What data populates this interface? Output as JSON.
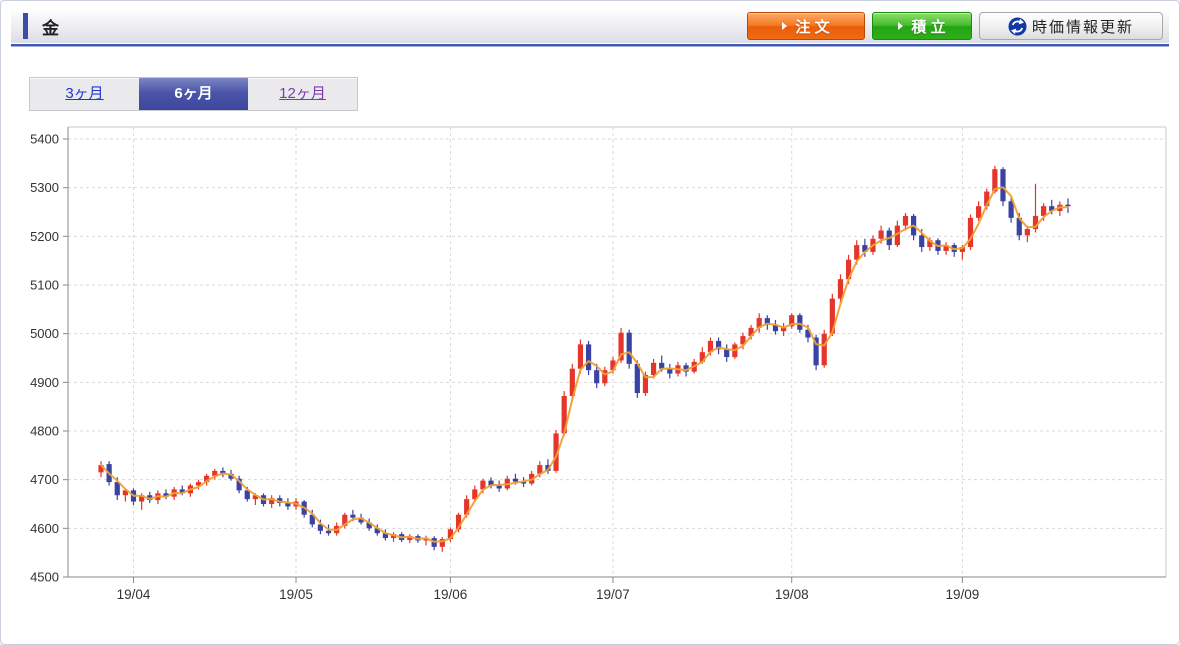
{
  "header": {
    "title": "金",
    "order_button_label": "注 文",
    "accumulate_button_label": "積 立",
    "refresh_button_label": "時価情報更新"
  },
  "tabs": [
    {
      "label": "3ヶ月",
      "selected": false
    },
    {
      "label": "6ヶ月",
      "selected": true
    },
    {
      "label": "12ヶ月",
      "selected": false
    }
  ],
  "chart_data": {
    "type": "candlestick",
    "title": "",
    "xlabel": "",
    "ylabel": "",
    "ylim": [
      4500,
      5400
    ],
    "yticks": [
      4500,
      4600,
      4700,
      4800,
      4900,
      5000,
      5100,
      5200,
      5300,
      5400
    ],
    "grid": "dashed",
    "xticks": [
      {
        "label": "19/04",
        "candle_index": 4
      },
      {
        "label": "19/05",
        "candle_index": 24
      },
      {
        "label": "19/06",
        "candle_index": 43
      },
      {
        "label": "19/07",
        "candle_index": 63
      },
      {
        "label": "19/08",
        "candle_index": 85
      },
      {
        "label": "19/09",
        "candle_index": 106
      }
    ],
    "overlay": {
      "type": "sma",
      "period": 3,
      "color": "#f0a032"
    },
    "colors": {
      "up": "#e5362b",
      "down": "#3943a4",
      "grid": "#d9d9d9",
      "axis": "#8a8a8a",
      "border": "#c8c8c8",
      "label": "#333333"
    },
    "candles": [
      [
        4715,
        4738,
        4705,
        4730
      ],
      [
        4732,
        4738,
        4688,
        4695
      ],
      [
        4695,
        4705,
        4658,
        4668
      ],
      [
        4668,
        4682,
        4655,
        4678
      ],
      [
        4678,
        4682,
        4648,
        4655
      ],
      [
        4655,
        4672,
        4638,
        4668
      ],
      [
        4668,
        4675,
        4652,
        4658
      ],
      [
        4658,
        4678,
        4650,
        4672
      ],
      [
        4672,
        4680,
        4660,
        4665
      ],
      [
        4665,
        4685,
        4658,
        4680
      ],
      [
        4680,
        4688,
        4668,
        4672
      ],
      [
        4672,
        4692,
        4665,
        4688
      ],
      [
        4688,
        4700,
        4680,
        4695
      ],
      [
        4695,
        4712,
        4688,
        4708
      ],
      [
        4708,
        4722,
        4700,
        4718
      ],
      [
        4718,
        4725,
        4705,
        4712
      ],
      [
        4712,
        4720,
        4698,
        4702
      ],
      [
        4702,
        4708,
        4672,
        4678
      ],
      [
        4678,
        4685,
        4655,
        4660
      ],
      [
        4660,
        4672,
        4648,
        4668
      ],
      [
        4668,
        4672,
        4645,
        4650
      ],
      [
        4650,
        4668,
        4642,
        4662
      ],
      [
        4662,
        4668,
        4645,
        4652
      ],
      [
        4652,
        4662,
        4638,
        4645
      ],
      [
        4645,
        4662,
        4638,
        4655
      ],
      [
        4655,
        4658,
        4622,
        4628
      ],
      [
        4628,
        4638,
        4602,
        4608
      ],
      [
        4608,
        4618,
        4588,
        4595
      ],
      [
        4595,
        4608,
        4585,
        4590
      ],
      [
        4590,
        4612,
        4585,
        4605
      ],
      [
        4605,
        4632,
        4600,
        4628
      ],
      [
        4628,
        4638,
        4615,
        4622
      ],
      [
        4622,
        4630,
        4608,
        4612
      ],
      [
        4612,
        4620,
        4595,
        4600
      ],
      [
        4600,
        4608,
        4585,
        4590
      ],
      [
        4590,
        4598,
        4575,
        4580
      ],
      [
        4580,
        4592,
        4572,
        4588
      ],
      [
        4588,
        4592,
        4572,
        4576
      ],
      [
        4576,
        4588,
        4570,
        4584
      ],
      [
        4584,
        4588,
        4570,
        4575
      ],
      [
        4575,
        4585,
        4565,
        4580
      ],
      [
        4580,
        4584,
        4555,
        4562
      ],
      [
        4562,
        4582,
        4552,
        4578
      ],
      [
        4578,
        4602,
        4572,
        4598
      ],
      [
        4598,
        4632,
        4592,
        4628
      ],
      [
        4628,
        4668,
        4622,
        4660
      ],
      [
        4660,
        4688,
        4655,
        4680
      ],
      [
        4680,
        4702,
        4672,
        4698
      ],
      [
        4698,
        4705,
        4682,
        4688
      ],
      [
        4688,
        4698,
        4675,
        4682
      ],
      [
        4682,
        4708,
        4678,
        4702
      ],
      [
        4702,
        4712,
        4690,
        4696
      ],
      [
        4696,
        4705,
        4685,
        4692
      ],
      [
        4692,
        4718,
        4688,
        4712
      ],
      [
        4712,
        4738,
        4705,
        4730
      ],
      [
        4730,
        4742,
        4712,
        4718
      ],
      [
        4718,
        4802,
        4714,
        4795
      ],
      [
        4795,
        4882,
        4790,
        4872
      ],
      [
        4872,
        4938,
        4862,
        4928
      ],
      [
        4928,
        4988,
        4918,
        4978
      ],
      [
        4978,
        4985,
        4915,
        4925
      ],
      [
        4925,
        4938,
        4888,
        4898
      ],
      [
        4898,
        4932,
        4892,
        4925
      ],
      [
        4925,
        4952,
        4918,
        4945
      ],
      [
        4945,
        5012,
        4940,
        5002
      ],
      [
        5002,
        5008,
        4928,
        4938
      ],
      [
        4938,
        4945,
        4868,
        4878
      ],
      [
        4878,
        4922,
        4872,
        4915
      ],
      [
        4915,
        4948,
        4908,
        4940
      ],
      [
        4940,
        4955,
        4922,
        4928
      ],
      [
        4928,
        4938,
        4908,
        4918
      ],
      [
        4918,
        4942,
        4912,
        4935
      ],
      [
        4935,
        4940,
        4912,
        4922
      ],
      [
        4922,
        4948,
        4918,
        4942
      ],
      [
        4942,
        4972,
        4938,
        4962
      ],
      [
        4962,
        4992,
        4955,
        4985
      ],
      [
        4985,
        4992,
        4958,
        4968
      ],
      [
        4968,
        4978,
        4942,
        4952
      ],
      [
        4952,
        4982,
        4948,
        4978
      ],
      [
        4978,
        5002,
        4968,
        4995
      ],
      [
        4995,
        5018,
        4988,
        5012
      ],
      [
        5012,
        5042,
        5002,
        5032
      ],
      [
        5032,
        5038,
        5008,
        5018
      ],
      [
        5018,
        5028,
        4998,
        5005
      ],
      [
        5005,
        5022,
        4995,
        5015
      ],
      [
        5015,
        5042,
        5010,
        5038
      ],
      [
        5038,
        5042,
        5002,
        5008
      ],
      [
        5008,
        5018,
        4982,
        4992
      ],
      [
        4992,
        4998,
        4925,
        4935
      ],
      [
        4935,
        5008,
        4930,
        5000
      ],
      [
        5000,
        5082,
        4995,
        5072
      ],
      [
        5072,
        5122,
        5062,
        5112
      ],
      [
        5112,
        5162,
        5102,
        5152
      ],
      [
        5152,
        5192,
        5142,
        5182
      ],
      [
        5182,
        5195,
        5158,
        5168
      ],
      [
        5168,
        5202,
        5162,
        5195
      ],
      [
        5195,
        5222,
        5185,
        5212
      ],
      [
        5212,
        5218,
        5172,
        5182
      ],
      [
        5182,
        5232,
        5178,
        5222
      ],
      [
        5222,
        5248,
        5212,
        5242
      ],
      [
        5242,
        5246,
        5192,
        5202
      ],
      [
        5202,
        5215,
        5168,
        5178
      ],
      [
        5178,
        5198,
        5170,
        5192
      ],
      [
        5192,
        5196,
        5162,
        5170
      ],
      [
        5170,
        5188,
        5162,
        5182
      ],
      [
        5182,
        5186,
        5158,
        5168
      ],
      [
        5168,
        5182,
        5152,
        5178
      ],
      [
        5178,
        5245,
        5172,
        5238
      ],
      [
        5238,
        5272,
        5232,
        5262
      ],
      [
        5262,
        5298,
        5255,
        5292
      ],
      [
        5292,
        5345,
        5288,
        5338
      ],
      [
        5338,
        5342,
        5262,
        5272
      ],
      [
        5272,
        5282,
        5228,
        5238
      ],
      [
        5238,
        5248,
        5192,
        5202
      ],
      [
        5202,
        5222,
        5188,
        5215
      ],
      [
        5215,
        5308,
        5208,
        5242
      ],
      [
        5242,
        5268,
        5232,
        5262
      ],
      [
        5262,
        5275,
        5245,
        5252
      ],
      [
        5252,
        5272,
        5242,
        5265
      ],
      [
        5265,
        5278,
        5248,
        5262
      ]
    ]
  }
}
